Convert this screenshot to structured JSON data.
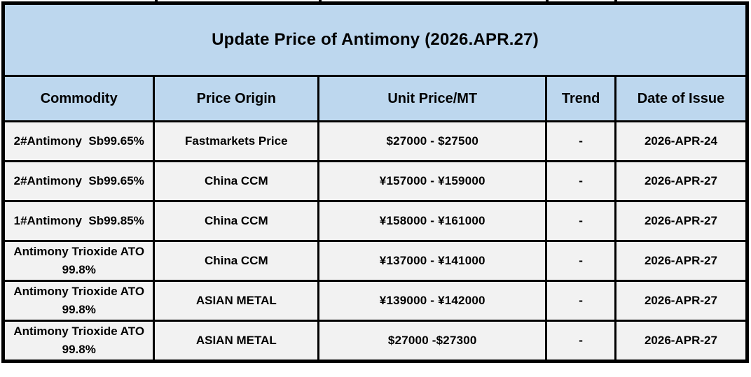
{
  "title": "Update Price of Antimony (2026.APR.27)",
  "table": {
    "columns": [
      "Commodity",
      "Price Origin",
      "Unit Price/MT",
      "Trend",
      "Date of Issue"
    ],
    "rows": [
      {
        "commodity": "2#Antimony  Sb99.65%",
        "origin": "Fastmarkets Price",
        "price": "$27000 - $27500",
        "trend": "-",
        "date": "2026-APR-24"
      },
      {
        "commodity": "2#Antimony  Sb99.65%",
        "origin": "China CCM",
        "price": "¥157000 - ¥159000",
        "trend": "-",
        "date": "2026-APR-27"
      },
      {
        "commodity": "1#Antimony  Sb99.85%",
        "origin": "China CCM",
        "price": "¥158000 - ¥161000",
        "trend": "-",
        "date": "2026-APR-27"
      },
      {
        "commodity": "Antimony Trioxide ATO 99.8%",
        "origin": "China CCM",
        "price": "¥137000 - ¥141000",
        "trend": "-",
        "date": "2026-APR-27"
      },
      {
        "commodity": "Antimony Trioxide ATO 99.8%",
        "origin": "ASIAN METAL",
        "price": "¥139000 - ¥142000",
        "trend": "-",
        "date": "2026-APR-27"
      },
      {
        "commodity": "Antimony Trioxide ATO 99.8%",
        "origin": "ASIAN METAL",
        "price": "$27000 -$27300",
        "trend": "-",
        "date": "2026-APR-27"
      }
    ]
  },
  "colors": {
    "header_bg": "#BDD7EE",
    "row_bg": "#F2F2F2",
    "border": "#000000",
    "text": "#000000"
  }
}
